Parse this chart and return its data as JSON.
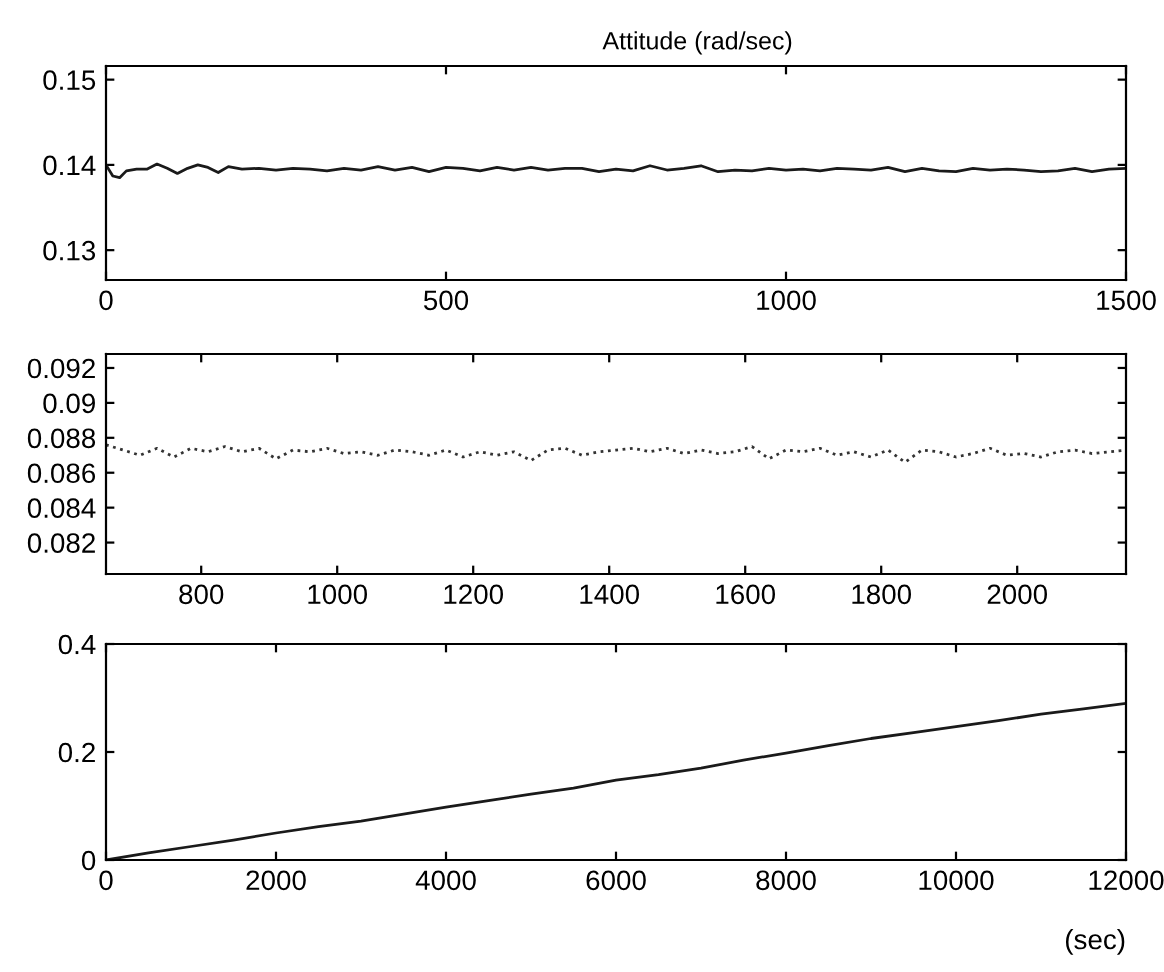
{
  "chart_data": [
    {
      "type": "line",
      "title": "Attitude (rad/sec)",
      "xlim": [
        0,
        1500
      ],
      "ylim": [
        0.1265,
        0.1516
      ],
      "xticks": [
        0,
        500,
        1000,
        1500
      ],
      "yticks": [
        0.13,
        0.14,
        0.15
      ],
      "grid": false,
      "legend": false,
      "x": [
        0,
        10,
        20,
        30,
        45,
        60,
        75,
        90,
        105,
        120,
        135,
        150,
        165,
        180,
        200,
        225,
        250,
        275,
        300,
        325,
        350,
        375,
        400,
        425,
        450,
        475,
        500,
        525,
        550,
        575,
        600,
        625,
        650,
        675,
        700,
        725,
        750,
        775,
        800,
        825,
        850,
        875,
        900,
        925,
        950,
        975,
        1000,
        1025,
        1050,
        1075,
        1100,
        1125,
        1150,
        1175,
        1200,
        1225,
        1250,
        1275,
        1300,
        1325,
        1350,
        1375,
        1400,
        1425,
        1450,
        1475,
        1500
      ],
      "series": [
        {
          "color": "#1a1a1a",
          "values": [
            0.14,
            0.1387,
            0.1385,
            0.1393,
            0.1395,
            0.1395,
            0.1401,
            0.1396,
            0.139,
            0.1396,
            0.14,
            0.1397,
            0.1391,
            0.1398,
            0.1395,
            0.1396,
            0.1394,
            0.1396,
            0.1395,
            0.1393,
            0.1396,
            0.1394,
            0.1398,
            0.1394,
            0.1397,
            0.1392,
            0.1397,
            0.1396,
            0.1393,
            0.1397,
            0.1394,
            0.1397,
            0.1394,
            0.1396,
            0.1396,
            0.1392,
            0.1395,
            0.1393,
            0.1399,
            0.1394,
            0.1396,
            0.1399,
            0.1392,
            0.1394,
            0.1393,
            0.1396,
            0.1394,
            0.1395,
            0.1393,
            0.1396,
            0.1395,
            0.1394,
            0.1397,
            0.1392,
            0.1396,
            0.1393,
            0.1392,
            0.1396,
            0.1394,
            0.1395,
            0.1394,
            0.1392,
            0.1393,
            0.1396,
            0.1392,
            0.1395,
            0.1396
          ]
        }
      ]
    },
    {
      "type": "line",
      "line_style": "dotted",
      "xlim": [
        660,
        2160
      ],
      "ylim": [
        0.0802,
        0.0928
      ],
      "xticks": [
        800,
        1000,
        1200,
        1400,
        1600,
        1800,
        2000
      ],
      "yticks": [
        0.082,
        0.084,
        0.086,
        0.088,
        0.09,
        0.092
      ],
      "grid": false,
      "legend": false,
      "x": [
        660,
        685,
        710,
        735,
        760,
        785,
        810,
        835,
        860,
        885,
        910,
        935,
        960,
        985,
        1010,
        1035,
        1060,
        1085,
        1110,
        1135,
        1160,
        1185,
        1210,
        1235,
        1260,
        1285,
        1310,
        1335,
        1360,
        1385,
        1410,
        1435,
        1460,
        1485,
        1510,
        1535,
        1560,
        1585,
        1610,
        1635,
        1660,
        1685,
        1710,
        1735,
        1760,
        1785,
        1810,
        1835,
        1860,
        1885,
        1910,
        1935,
        1960,
        1985,
        2010,
        2035,
        2060,
        2085,
        2110,
        2135,
        2160
      ],
      "series": [
        {
          "color": "#333333",
          "values": [
            0.0876,
            0.0873,
            0.087,
            0.0874,
            0.0869,
            0.0874,
            0.0872,
            0.0875,
            0.0872,
            0.0874,
            0.0868,
            0.0873,
            0.0872,
            0.0874,
            0.0871,
            0.0872,
            0.087,
            0.0873,
            0.0872,
            0.087,
            0.0873,
            0.0869,
            0.0872,
            0.087,
            0.0872,
            0.0867,
            0.0873,
            0.0874,
            0.087,
            0.0872,
            0.0873,
            0.0874,
            0.0872,
            0.0874,
            0.0871,
            0.0873,
            0.0871,
            0.0872,
            0.0875,
            0.0868,
            0.0873,
            0.0872,
            0.0874,
            0.087,
            0.0872,
            0.0869,
            0.0873,
            0.0866,
            0.0873,
            0.0872,
            0.0869,
            0.0871,
            0.0874,
            0.087,
            0.0871,
            0.0869,
            0.0872,
            0.0873,
            0.0871,
            0.0872,
            0.0873
          ]
        }
      ]
    },
    {
      "type": "line",
      "xlabel": "(sec)",
      "xlim": [
        0,
        12000
      ],
      "ylim": [
        0,
        0.4
      ],
      "xticks": [
        0,
        2000,
        4000,
        6000,
        8000,
        10000,
        12000
      ],
      "yticks": [
        0,
        0.2,
        0.4
      ],
      "grid": false,
      "legend": false,
      "x": [
        0,
        500,
        1000,
        1500,
        2000,
        2500,
        3000,
        3500,
        4000,
        4500,
        5000,
        5500,
        6000,
        6500,
        7000,
        7500,
        8000,
        8500,
        9000,
        9500,
        10000,
        10500,
        11000,
        11500,
        12000
      ],
      "series": [
        {
          "color": "#1a1a1a",
          "values": [
            0,
            0.013,
            0.025,
            0.037,
            0.05,
            0.062,
            0.072,
            0.085,
            0.098,
            0.11,
            0.122,
            0.133,
            0.148,
            0.158,
            0.17,
            0.185,
            0.198,
            0.212,
            0.225,
            0.236,
            0.247,
            0.258,
            0.27,
            0.28,
            0.29
          ]
        }
      ]
    }
  ]
}
